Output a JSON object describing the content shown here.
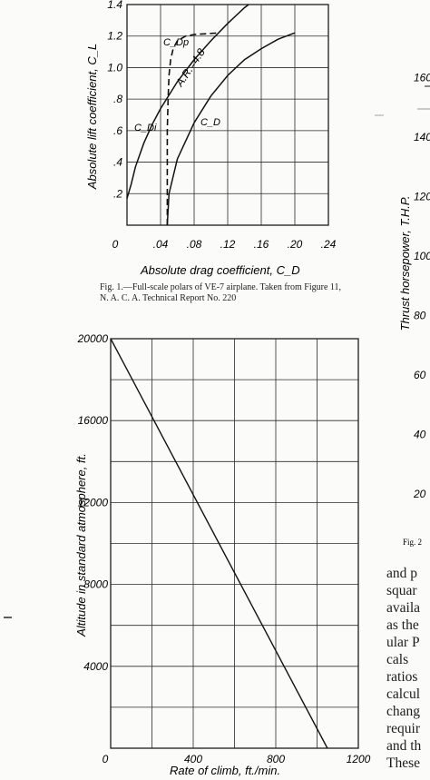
{
  "chart_data": [
    {
      "type": "line",
      "xlabel": "Absolute drag coefficient, C_D",
      "ylabel": "Absolute lift coefficient, C_L",
      "xlim": [
        0,
        0.24
      ],
      "ylim": [
        0,
        1.4
      ],
      "x_ticks": [
        "0",
        ".04",
        ".08",
        ".12",
        ".16",
        ".20",
        ".24"
      ],
      "y_ticks": [
        ".2",
        ".4",
        ".6",
        ".8",
        "1.0",
        "1.2",
        "1.4"
      ],
      "grid": true,
      "series": [
        {
          "name": "C_Dp",
          "style": "dashed",
          "points": [
            [
              0.048,
              0.0
            ],
            [
              0.048,
              0.3
            ],
            [
              0.048,
              0.6
            ],
            [
              0.049,
              0.8
            ],
            [
              0.05,
              0.95
            ],
            [
              0.052,
              1.05
            ],
            [
              0.055,
              1.12
            ],
            [
              0.06,
              1.17
            ],
            [
              0.07,
              1.2
            ],
            [
              0.08,
              1.21
            ],
            [
              0.11,
              1.22
            ]
          ]
        },
        {
          "name": "C_Di",
          "points": [
            [
              0.0,
              0.17
            ],
            [
              0.005,
              0.26
            ],
            [
              0.01,
              0.37
            ],
            [
              0.02,
              0.52
            ],
            [
              0.03,
              0.64
            ],
            [
              0.04,
              0.74
            ],
            [
              0.06,
              0.91
            ],
            [
              0.08,
              1.05
            ],
            [
              0.1,
              1.17
            ],
            [
              0.12,
              1.28
            ],
            [
              0.14,
              1.38
            ],
            [
              0.145,
              1.4
            ]
          ]
        },
        {
          "name": "C_D",
          "points": [
            [
              0.048,
              0.0
            ],
            [
              0.05,
              0.2
            ],
            [
              0.06,
              0.42
            ],
            [
              0.08,
              0.65
            ],
            [
              0.1,
              0.82
            ],
            [
              0.12,
              0.95
            ],
            [
              0.14,
              1.05
            ],
            [
              0.16,
              1.12
            ],
            [
              0.18,
              1.18
            ],
            [
              0.2,
              1.22
            ]
          ]
        }
      ],
      "annotations": [
        "C_Dp",
        "C_Di",
        "C_D",
        "A.R.=4.8"
      ]
    },
    {
      "type": "line",
      "xlabel": "Rate of climb, ft./min.",
      "ylabel": "Altitude in standard atmosphere, ft.",
      "xlim": [
        0,
        1200
      ],
      "ylim": [
        0,
        20000
      ],
      "x_ticks": [
        "0",
        "400",
        "800",
        "1200"
      ],
      "y_ticks": [
        "4000",
        "8000",
        "12000",
        "16000",
        "20000"
      ],
      "grid": true,
      "series": [
        {
          "name": "",
          "points": [
            [
              0,
              20000
            ],
            [
              1050,
              0
            ]
          ]
        }
      ]
    },
    {
      "type": "line",
      "ylabel": "Thrust horsepower, T.H.P.",
      "y_ticks_visible": [
        "20",
        "40",
        "60",
        "80",
        "100",
        "120",
        "140",
        "160"
      ],
      "partial": true
    }
  ],
  "captions": {
    "fig1": "Fig. 1.—Full-scale polars of VE-7 airplane. Taken from Figure 11, N. A. C. A. Technical Report No. 220",
    "fig2_fragment": "Fig. 2"
  },
  "body_text": [
    "and p",
    "squar",
    "availa",
    "as the",
    "ular P",
    "cals",
    "ratios",
    "calcul",
    "chang",
    "requir",
    "and th",
    "These"
  ]
}
